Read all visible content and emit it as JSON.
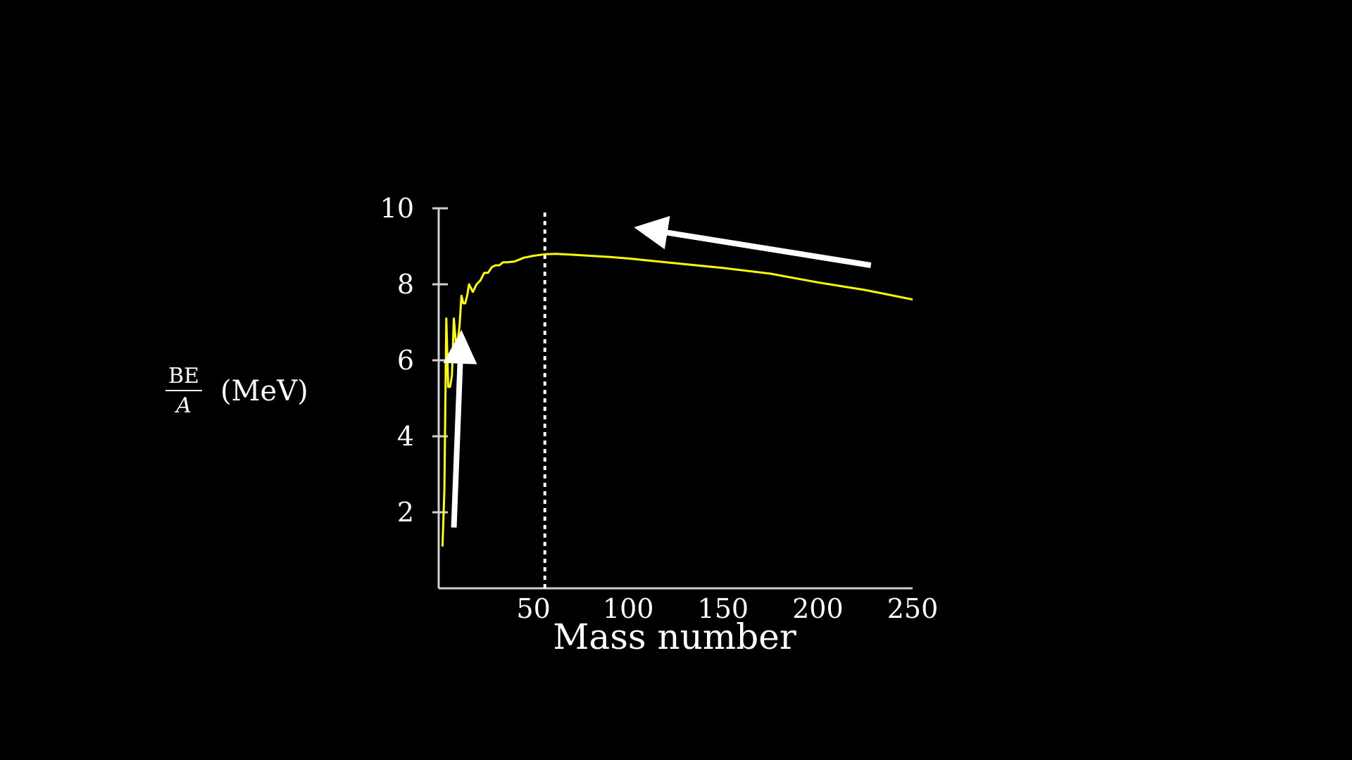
{
  "chart_data": {
    "type": "line",
    "xlabel": "Mass number",
    "ylabel": {
      "numerator": "BE",
      "denominator": "A",
      "unit": "(MeV)"
    },
    "xlim": [
      0,
      250
    ],
    "ylim": [
      0,
      10
    ],
    "xticks": [
      50,
      100,
      150,
      200,
      250
    ],
    "yticks": [
      2,
      4,
      6,
      8,
      10
    ],
    "grid": false,
    "reference_line": {
      "x": 56,
      "style": "dotted",
      "color": "#ffffff"
    },
    "series": [
      {
        "color": "#ffff00",
        "x": [
          2,
          3,
          4,
          5,
          6,
          7,
          8,
          9,
          10,
          11,
          12,
          13,
          14,
          15,
          16,
          18,
          20,
          22,
          24,
          26,
          28,
          30,
          32,
          34,
          36,
          40,
          45,
          50,
          56,
          62,
          70,
          80,
          90,
          100,
          120,
          150,
          175,
          200,
          225,
          250
        ],
        "y": [
          1.1,
          2.6,
          7.1,
          5.3,
          5.3,
          5.6,
          7.1,
          6.5,
          6.5,
          6.9,
          7.7,
          7.5,
          7.5,
          7.7,
          8.0,
          7.8,
          8.0,
          8.1,
          8.3,
          8.3,
          8.45,
          8.5,
          8.5,
          8.58,
          8.58,
          8.6,
          8.7,
          8.75,
          8.79,
          8.8,
          8.78,
          8.75,
          8.72,
          8.68,
          8.58,
          8.43,
          8.28,
          8.05,
          7.85,
          7.6
        ]
      }
    ],
    "arrows": [
      {
        "from": [
          8,
          1.6
        ],
        "to": [
          12,
          6.8
        ],
        "color": "#ffffff"
      },
      {
        "from": [
          228,
          8.5
        ],
        "to": [
          103,
          9.5
        ],
        "color": "#ffffff"
      }
    ]
  }
}
